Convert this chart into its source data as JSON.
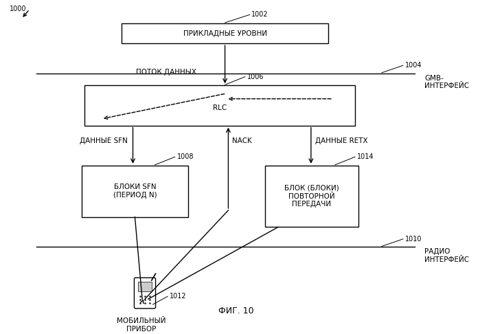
{
  "bg_color": "#ffffff",
  "fig_width": 6.99,
  "fig_height": 4.86,
  "title_label": "ФИГ. 10",
  "labels": {
    "1000": "1000",
    "1002": "1002",
    "1004": "1004",
    "1006": "1006",
    "1008": "1008",
    "1010": "1010",
    "1012": "1012",
    "1014": "1014",
    "app_layers": "ПРИКЛАДНЫЕ УРОВНИ",
    "data_flow": "ПОТОК ДАННЫХ",
    "rlc": "RLC",
    "sfn_data": "ДАННЫЕ SFN",
    "nack": "NACK",
    "retx_data": "ДАННЫЕ RETX",
    "sfn_blocks": "БЛОКИ SFN\n(ПЕРИОД N)",
    "retx_block": "БЛОК (БЛОКИ)\nПОВТОРНОЙ\nПЕРЕДАЧИ",
    "gmb_iface": "GMB-\nИНТЕРФЕЙС",
    "radio_iface": "РАДИО\nИНТЕРФЕЙС",
    "mobile_device": "МОБИЛЬНЫЙ\nПРИБОР"
  }
}
